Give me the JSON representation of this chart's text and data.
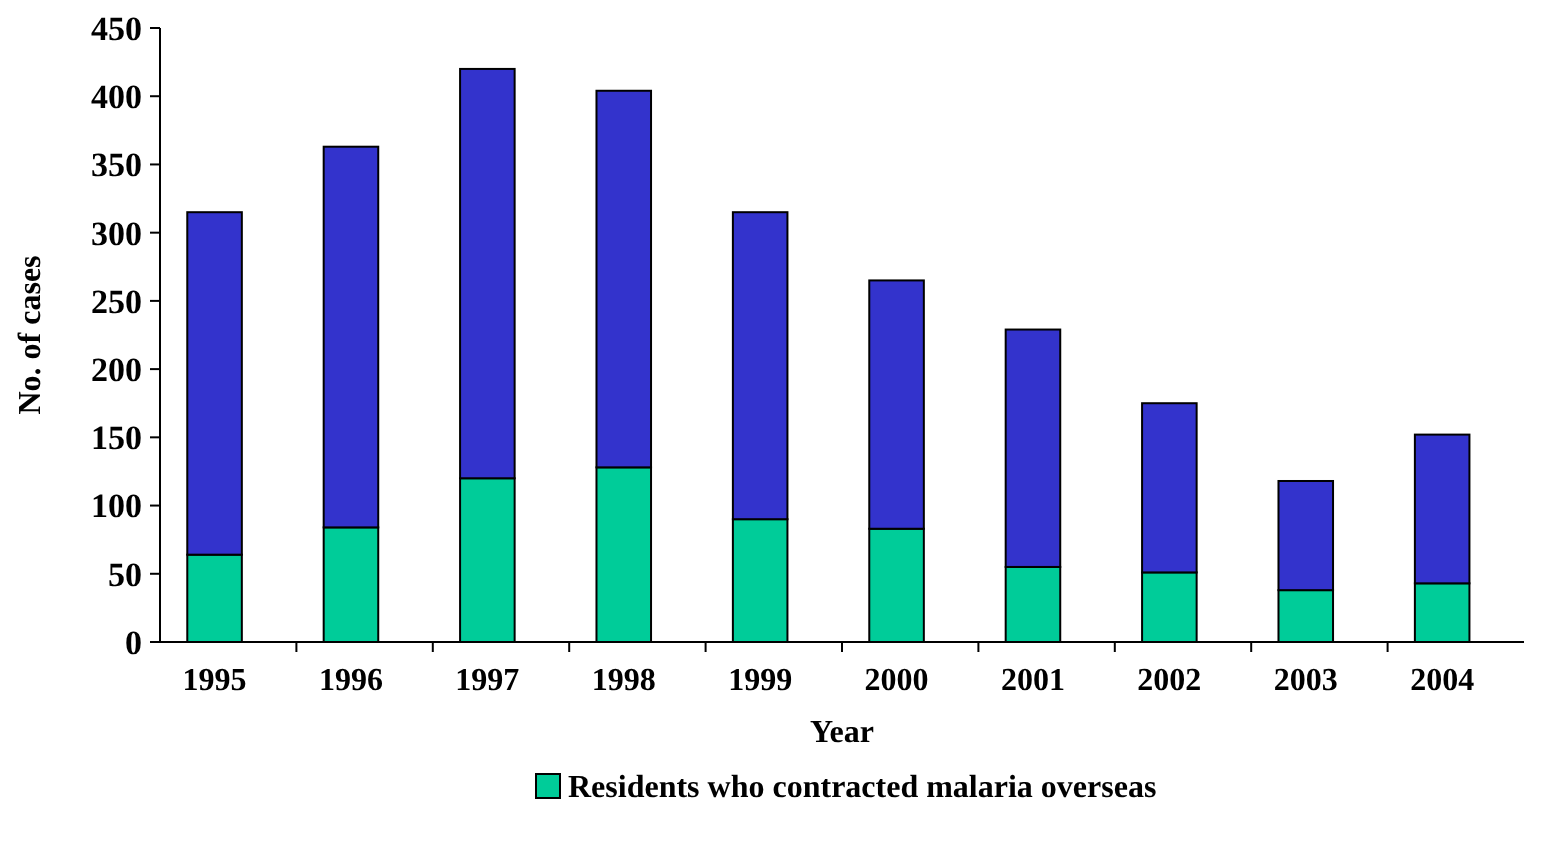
{
  "chart_data": {
    "type": "bar",
    "stacked": true,
    "xlabel": "Year",
    "ylabel": "No. of cases",
    "categories": [
      "1995",
      "1996",
      "1997",
      "1998",
      "1999",
      "2000",
      "2001",
      "2002",
      "2003",
      "2004"
    ],
    "series": [
      {
        "name": "Residents who contracted malaria overseas",
        "color": "#00cc99",
        "values": [
          64,
          84,
          120,
          128,
          90,
          83,
          55,
          51,
          38,
          43
        ]
      },
      {
        "color": "#3333cc",
        "values": [
          251,
          279,
          300,
          276,
          225,
          182,
          174,
          124,
          80,
          109
        ]
      }
    ],
    "ylim": [
      0,
      450
    ],
    "yticks": [
      0,
      50,
      100,
      150,
      200,
      250,
      300,
      350,
      400,
      450
    ],
    "grid": false,
    "legend": "bottom"
  }
}
